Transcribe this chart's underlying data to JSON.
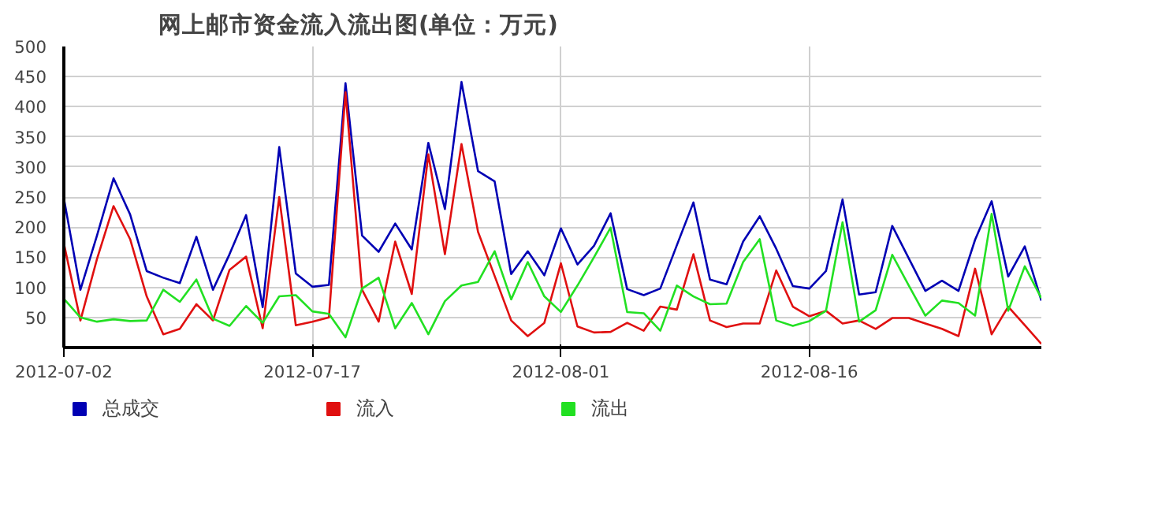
{
  "chart_data": {
    "type": "line",
    "title": "网上邮市资金流入流出图(单位：万元)",
    "x": [
      "2012-07-02",
      "2012-07-03",
      "2012-07-04",
      "2012-07-05",
      "2012-07-06",
      "2012-07-07",
      "2012-07-08",
      "2012-07-09",
      "2012-07-10",
      "2012-07-11",
      "2012-07-12",
      "2012-07-13",
      "2012-07-14",
      "2012-07-15",
      "2012-07-16",
      "2012-07-17",
      "2012-07-18",
      "2012-07-19",
      "2012-07-20",
      "2012-07-21",
      "2012-07-22",
      "2012-07-23",
      "2012-07-24",
      "2012-07-25",
      "2012-07-26",
      "2012-07-27",
      "2012-07-28",
      "2012-07-29",
      "2012-07-30",
      "2012-07-31",
      "2012-08-01",
      "2012-08-02",
      "2012-08-03",
      "2012-08-04",
      "2012-08-05",
      "2012-08-06",
      "2012-08-07",
      "2012-08-08",
      "2012-08-09",
      "2012-08-10",
      "2012-08-11",
      "2012-08-12",
      "2012-08-13",
      "2012-08-14",
      "2012-08-15",
      "2012-08-16",
      "2012-08-17",
      "2012-08-18",
      "2012-08-19",
      "2012-08-20",
      "2012-08-21",
      "2012-08-22",
      "2012-08-23",
      "2012-08-24",
      "2012-08-25",
      "2012-08-26",
      "2012-08-27",
      "2012-08-28",
      "2012-08-29",
      "2012-08-30"
    ],
    "xlim": [
      "2012-07-02",
      "2012-08-30"
    ],
    "xticks": [
      "2012-07-02",
      "2012-07-17",
      "2012-08-01",
      "2012-08-16"
    ],
    "ylim": [
      0,
      500
    ],
    "yticks": [
      50,
      100,
      150,
      200,
      250,
      300,
      350,
      400,
      450,
      500
    ],
    "grid": true,
    "legend": "bottom",
    "marker": "none",
    "line_style": "solid",
    "series": [
      {
        "name": "总成交",
        "color": "#0000b4",
        "values": [
          248,
          96,
          186,
          281,
          221,
          127,
          116,
          107,
          184,
          96,
          155,
          220,
          67,
          333,
          123,
          101,
          104,
          439,
          186,
          159,
          206,
          163,
          340,
          230,
          441,
          293,
          276,
          122,
          160,
          120,
          198,
          138,
          169,
          223,
          97,
          87,
          98,
          170,
          241,
          113,
          105,
          176,
          218,
          164,
          102,
          98,
          127,
          246,
          88,
          92,
          202,
          148,
          94,
          111,
          94,
          179,
          243,
          118,
          168,
          78
        ]
      },
      {
        "name": "流入",
        "color": "#e01010",
        "values": [
          173,
          45,
          147,
          235,
          180,
          85,
          22,
          31,
          72,
          45,
          129,
          151,
          32,
          250,
          37,
          43,
          50,
          424,
          96,
          43,
          176,
          89,
          321,
          155,
          338,
          192,
          119,
          45,
          19,
          41,
          140,
          35,
          25,
          26,
          41,
          28,
          68,
          63,
          155,
          45,
          34,
          40,
          40,
          128,
          68,
          52,
          61,
          40,
          45,
          31,
          49,
          49,
          40,
          31,
          19,
          131,
          22,
          68,
          37,
          6
        ]
      },
      {
        "name": "流出",
        "color": "#22e022",
        "values": [
          81,
          50,
          43,
          47,
          44,
          45,
          96,
          76,
          113,
          48,
          36,
          69,
          41,
          85,
          87,
          60,
          56,
          17,
          98,
          116,
          32,
          74,
          22,
          77,
          103,
          109,
          160,
          80,
          142,
          85,
          59,
          103,
          150,
          199,
          59,
          57,
          28,
          103,
          85,
          72,
          73,
          142,
          180,
          45,
          36,
          44,
          61,
          208,
          43,
          62,
          154,
          103,
          53,
          78,
          74,
          53,
          222,
          61,
          135,
          82
        ]
      }
    ]
  }
}
